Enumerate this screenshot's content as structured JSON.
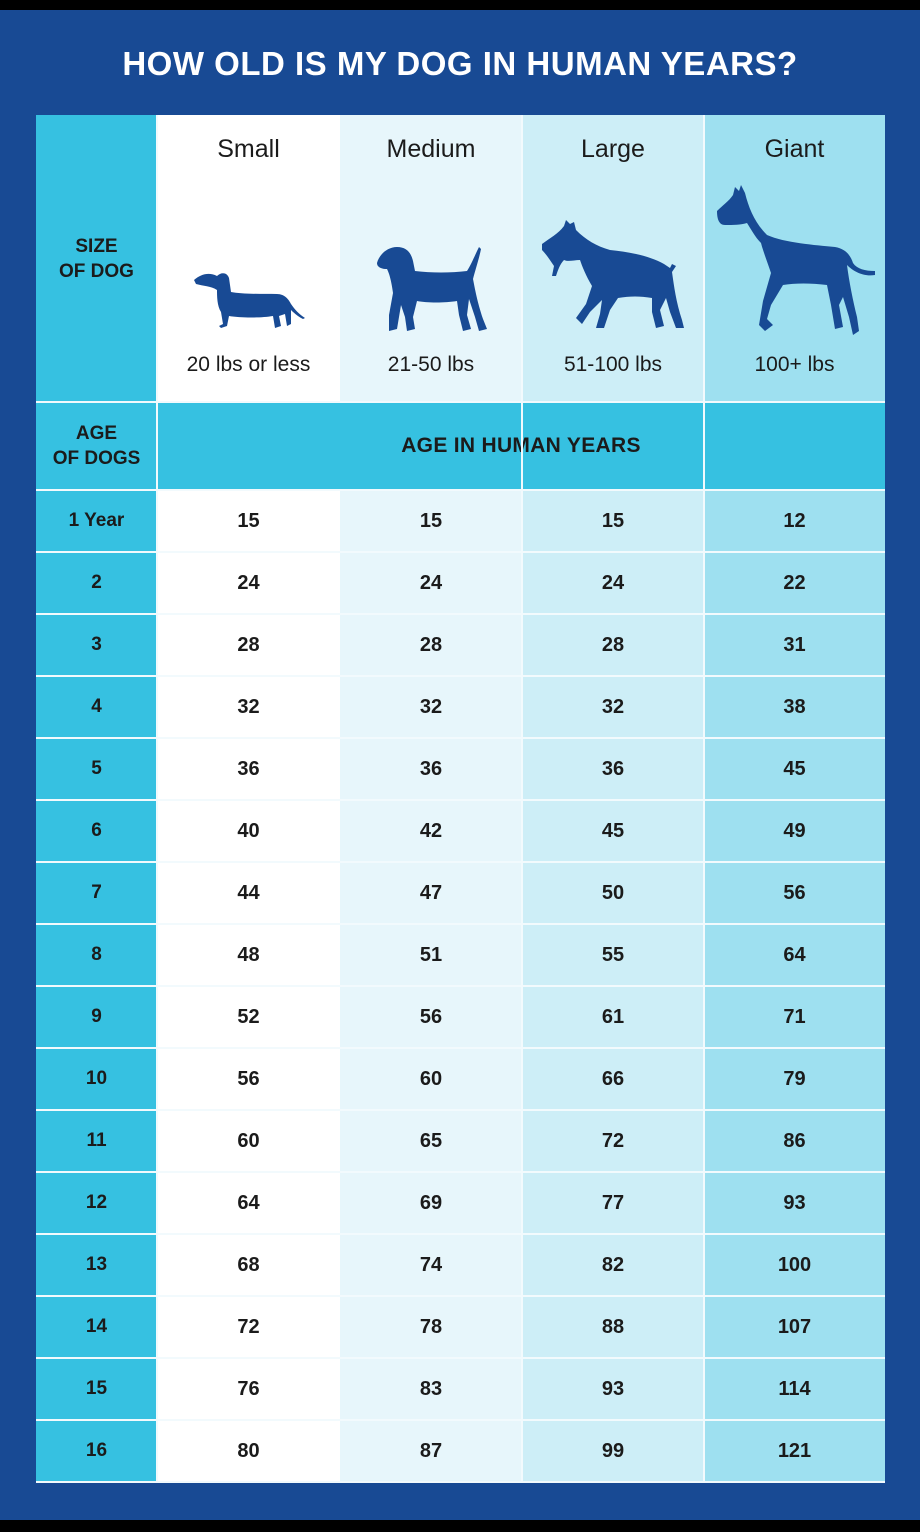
{
  "title": "HOW OLD IS MY DOG IN HUMAN YEARS?",
  "colors": {
    "frame": "#184A94",
    "accent_cyan": "#36C1E1",
    "small_col": "#FFFFFF",
    "medium_col": "#E7F6FB",
    "large_col": "#CDEEF7",
    "giant_col": "#9EE0F0",
    "silhouette": "#184A94"
  },
  "header": {
    "size_label_line1": "SIZE",
    "size_label_line2": "OF DOG",
    "age_label_line1": "AGE",
    "age_label_line2": "OF DOGS",
    "band_label": "AGE IN HUMAN YEARS"
  },
  "sizes": [
    {
      "name": "Small",
      "weight": "20 lbs or less",
      "icon": "dachshund-silhouette-icon"
    },
    {
      "name": "Medium",
      "weight": "21-50 lbs",
      "icon": "beagle-silhouette-icon"
    },
    {
      "name": "Large",
      "weight": "51-100 lbs",
      "icon": "doberman-silhouette-icon"
    },
    {
      "name": "Giant",
      "weight": "100+ lbs",
      "icon": "great-dane-silhouette-icon"
    }
  ],
  "rows": [
    {
      "age": "1 Year",
      "values": [
        "15",
        "15",
        "15",
        "12"
      ]
    },
    {
      "age": "2",
      "values": [
        "24",
        "24",
        "24",
        "22"
      ]
    },
    {
      "age": "3",
      "values": [
        "28",
        "28",
        "28",
        "31"
      ]
    },
    {
      "age": "4",
      "values": [
        "32",
        "32",
        "32",
        "38"
      ]
    },
    {
      "age": "5",
      "values": [
        "36",
        "36",
        "36",
        "45"
      ]
    },
    {
      "age": "6",
      "values": [
        "40",
        "42",
        "45",
        "49"
      ]
    },
    {
      "age": "7",
      "values": [
        "44",
        "47",
        "50",
        "56"
      ]
    },
    {
      "age": "8",
      "values": [
        "48",
        "51",
        "55",
        "64"
      ]
    },
    {
      "age": "9",
      "values": [
        "52",
        "56",
        "61",
        "71"
      ]
    },
    {
      "age": "10",
      "values": [
        "56",
        "60",
        "66",
        "79"
      ]
    },
    {
      "age": "11",
      "values": [
        "60",
        "65",
        "72",
        "86"
      ]
    },
    {
      "age": "12",
      "values": [
        "64",
        "69",
        "77",
        "93"
      ]
    },
    {
      "age": "13",
      "values": [
        "68",
        "74",
        "82",
        "100"
      ]
    },
    {
      "age": "14",
      "values": [
        "72",
        "78",
        "88",
        "107"
      ]
    },
    {
      "age": "15",
      "values": [
        "76",
        "83",
        "93",
        "114"
      ]
    },
    {
      "age": "16",
      "values": [
        "80",
        "87",
        "99",
        "121"
      ]
    }
  ],
  "chart_data": {
    "type": "table",
    "title": "HOW OLD IS MY DOG IN HUMAN YEARS?",
    "row_header": "AGE OF DOGS",
    "column_header": "SIZE OF DOG",
    "value_label": "AGE IN HUMAN YEARS",
    "categories": [
      "1 Year",
      "2",
      "3",
      "4",
      "5",
      "6",
      "7",
      "8",
      "9",
      "10",
      "11",
      "12",
      "13",
      "14",
      "15",
      "16"
    ],
    "x": [
      1,
      2,
      3,
      4,
      5,
      6,
      7,
      8,
      9,
      10,
      11,
      12,
      13,
      14,
      15,
      16
    ],
    "series": [
      {
        "name": "Small (20 lbs or less)",
        "values": [
          15,
          24,
          28,
          32,
          36,
          40,
          44,
          48,
          52,
          56,
          60,
          64,
          68,
          72,
          76,
          80
        ]
      },
      {
        "name": "Medium (21-50 lbs)",
        "values": [
          15,
          24,
          28,
          32,
          36,
          42,
          47,
          51,
          56,
          60,
          65,
          69,
          74,
          78,
          83,
          87
        ]
      },
      {
        "name": "Large (51-100 lbs)",
        "values": [
          15,
          24,
          28,
          32,
          36,
          45,
          50,
          55,
          61,
          66,
          72,
          77,
          82,
          88,
          93,
          99
        ]
      },
      {
        "name": "Giant (100+ lbs)",
        "values": [
          12,
          22,
          31,
          38,
          45,
          49,
          56,
          64,
          71,
          79,
          86,
          93,
          100,
          107,
          114,
          121
        ]
      }
    ]
  }
}
